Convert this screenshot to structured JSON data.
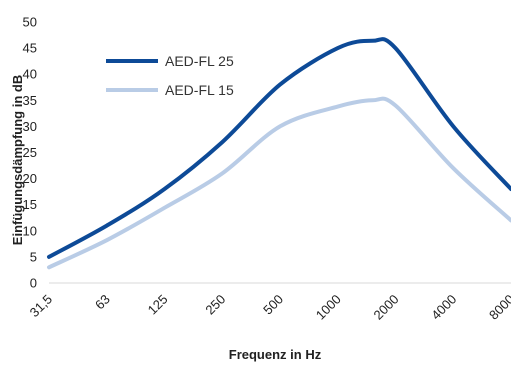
{
  "chart_data": {
    "type": "line",
    "title": "",
    "xlabel": "Frequenz in Hz",
    "ylabel": "Einfügungsdämpfung in dB",
    "categories": [
      "31,5",
      "63",
      "125",
      "250",
      "500",
      "1000",
      "2000",
      "4000",
      "8000"
    ],
    "ylim": [
      0,
      50
    ],
    "yticks": [
      0,
      5,
      10,
      15,
      20,
      25,
      30,
      35,
      40,
      45,
      50
    ],
    "grid": false,
    "legend_position": "top-left",
    "series": [
      {
        "name": "AED-FL 25",
        "color": "#0d4a97",
        "x": [
          0,
          1,
          2,
          3,
          4,
          5,
          5.6,
          6,
          7,
          8
        ],
        "values": [
          5,
          11,
          18,
          27,
          38,
          45,
          46.4,
          45,
          30,
          18
        ]
      },
      {
        "name": "AED-FL 15",
        "color": "#b9cce6",
        "x": [
          0,
          1,
          2,
          3,
          4,
          5,
          5.6,
          6,
          7,
          8
        ],
        "values": [
          3,
          8.2,
          14.4,
          21,
          30,
          33.8,
          35,
          34,
          22,
          12
        ]
      }
    ]
  }
}
